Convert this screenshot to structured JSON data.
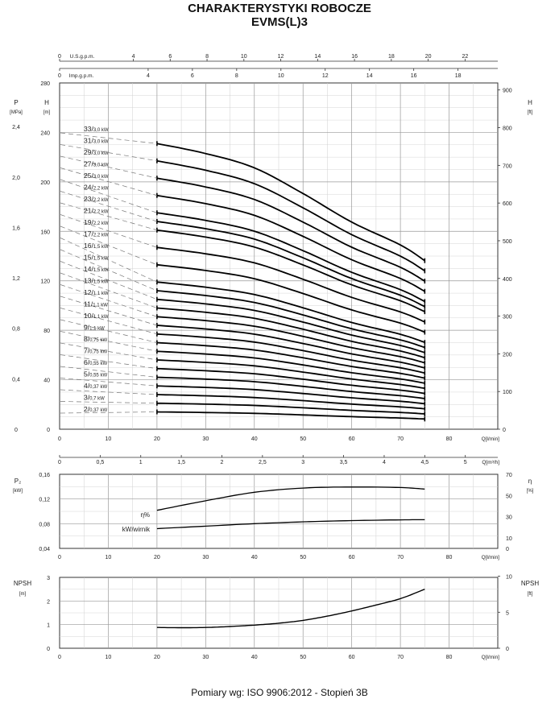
{
  "title": "CHARAKTERYSTYKI ROBOCZE",
  "subtitle": "EVMS(L)3",
  "footer": "Pomiary wg: ISO 9906:2012 - Stopień 3B",
  "chart_data": [
    {
      "type": "line",
      "name": "head-curves",
      "x_unit": "Q[l/min]",
      "xlim": [
        0,
        90
      ],
      "x_ticks": [
        0,
        10,
        20,
        30,
        40,
        50,
        60,
        70,
        80
      ],
      "ylabel_left": "H",
      "ylabel_left_unit": "[m]",
      "ylim_left": [
        0,
        280
      ],
      "y_ticks_left": [
        0,
        40,
        80,
        120,
        160,
        200,
        240,
        280
      ],
      "ylabel_pressure": "P",
      "ylabel_pressure_unit": "[MPa]",
      "pressure_ticks": [
        "0",
        "0,4",
        "0,8",
        "1,2",
        "1,6",
        "2,0",
        "2,4"
      ],
      "pressure_tick_values": [
        0,
        0.4,
        0.8,
        1.2,
        1.6,
        2.0,
        2.4
      ],
      "ylabel_right": "H",
      "ylabel_right_unit": "[ft]",
      "y_ticks_right": [
        0,
        100,
        200,
        300,
        400,
        500,
        600,
        700,
        800,
        900
      ],
      "top_axis_usgpm": {
        "label": "U.S.g.p.m.",
        "ticks": [
          0,
          4,
          6,
          8,
          10,
          12,
          14,
          16,
          18,
          20,
          22
        ]
      },
      "top_axis_impgpm": {
        "label": "Imp.g.p.m.",
        "ticks": [
          0,
          4,
          6,
          8,
          10,
          12,
          14,
          16,
          18
        ]
      },
      "bottom_axis_m3h": {
        "label": "Q[m³/h]",
        "ticks": [
          "0",
          "0,5",
          "1",
          "1,5",
          "2",
          "2,5",
          "3",
          "3,5",
          "4",
          "4,5",
          "5",
          "5,5"
        ],
        "values": [
          0,
          0.5,
          1,
          1.5,
          2,
          2.5,
          3,
          3.5,
          4,
          4.5,
          5,
          5.5
        ]
      },
      "x_points": [
        20,
        30,
        40,
        50,
        60,
        70,
        75
      ],
      "shape": [
        1.0,
        0.965,
        0.915,
        0.825,
        0.725,
        0.645,
        0.59
      ],
      "series": [
        {
          "stages": "33",
          "power": "3,0 kW",
          "h0": 231
        },
        {
          "stages": "31",
          "power": "3,0 kW",
          "h0": 217
        },
        {
          "stages": "29",
          "power": "3,0 kW",
          "h0": 203
        },
        {
          "stages": "27",
          "power": "3,0 kW",
          "h0": 189
        },
        {
          "stages": "25",
          "power": "3,0 kW",
          "h0": 175
        },
        {
          "stages": "24",
          "power": "2,2 kW",
          "h0": 168
        },
        {
          "stages": "23",
          "power": "2,2 kW",
          "h0": 161
        },
        {
          "stages": "21",
          "power": "2,2 kW",
          "h0": 147
        },
        {
          "stages": "19",
          "power": "2,2 kW",
          "h0": 133
        },
        {
          "stages": "17",
          "power": "2,2 kW",
          "h0": 119
        },
        {
          "stages": "16",
          "power": "1,5 kW",
          "h0": 112
        },
        {
          "stages": "15",
          "power": "1,5 kW",
          "h0": 105
        },
        {
          "stages": "14",
          "power": "1,5 kW",
          "h0": 98
        },
        {
          "stages": "13",
          "power": "1,5 kW",
          "h0": 91
        },
        {
          "stages": "12",
          "power": "1,1 kW",
          "h0": 84
        },
        {
          "stages": "11",
          "power": "1,1 kW",
          "h0": 77
        },
        {
          "stages": "10",
          "power": "1,1 kW",
          "h0": 70
        },
        {
          "stages": "9",
          "power": "1,1 kW",
          "h0": 63
        },
        {
          "stages": "8",
          "power": "0,75 kW",
          "h0": 56
        },
        {
          "stages": "7",
          "power": "0,75 kW",
          "h0": 49
        },
        {
          "stages": "6",
          "power": "0,55 kW",
          "h0": 42
        },
        {
          "stages": "5",
          "power": "0,55 kW",
          "h0": 35
        },
        {
          "stages": "4",
          "power": "0,37 kW",
          "h0": 28
        },
        {
          "stages": "3",
          "power": "0,7 kW",
          "h0": 21
        },
        {
          "stages": "2",
          "power": "0,37 kW",
          "h0": 14
        }
      ]
    },
    {
      "type": "line",
      "name": "power-efficiency",
      "x_unit": "Q[l/min]",
      "xlim": [
        0,
        90
      ],
      "x_ticks": [
        0,
        10,
        20,
        30,
        40,
        50,
        60,
        70,
        80
      ],
      "ylabel_left": "P₂",
      "ylabel_left_unit": "[kW]",
      "ylim_left": [
        0.04,
        0.16
      ],
      "y_ticks_left": [
        "0,04",
        "0,08",
        "0,12",
        "0,16"
      ],
      "y_tick_values_left": [
        0.04,
        0.08,
        0.12,
        0.16
      ],
      "ylabel_right": "η",
      "ylabel_right_unit": "[%]",
      "ylim_right": [
        0,
        70
      ],
      "y_ticks_right": [
        0,
        10,
        30,
        50,
        70
      ],
      "series": [
        {
          "name": "η%",
          "axis": "right",
          "x": [
            20,
            30,
            40,
            50,
            60,
            70,
            75
          ],
          "y": [
            36,
            45,
            53,
            57,
            58,
            57.5,
            56
          ]
        },
        {
          "name": "kW/wirnik",
          "axis": "left",
          "x": [
            20,
            30,
            40,
            50,
            60,
            70,
            75
          ],
          "y": [
            0.072,
            0.076,
            0.08,
            0.083,
            0.085,
            0.0862,
            0.0865
          ]
        }
      ]
    },
    {
      "type": "line",
      "name": "npsh",
      "x_unit": "Q[l/min]",
      "xlim": [
        0,
        90
      ],
      "x_ticks": [
        0,
        10,
        20,
        30,
        40,
        50,
        60,
        70,
        80
      ],
      "ylabel_left": "NPSH",
      "ylabel_left_unit": "[m]",
      "ylim_left": [
        0,
        3
      ],
      "y_ticks_left": [
        0,
        1,
        2,
        3
      ],
      "ylabel_right": "NPSH",
      "ylabel_right_unit": "[ft]",
      "y_ticks_right": [
        0,
        5,
        10
      ],
      "series": [
        {
          "x": [
            20,
            25,
            30,
            35,
            40,
            45,
            50,
            55,
            60,
            65,
            70,
            75
          ],
          "y": [
            0.88,
            0.87,
            0.88,
            0.92,
            0.98,
            1.06,
            1.18,
            1.36,
            1.58,
            1.83,
            2.1,
            2.5
          ]
        }
      ]
    }
  ]
}
